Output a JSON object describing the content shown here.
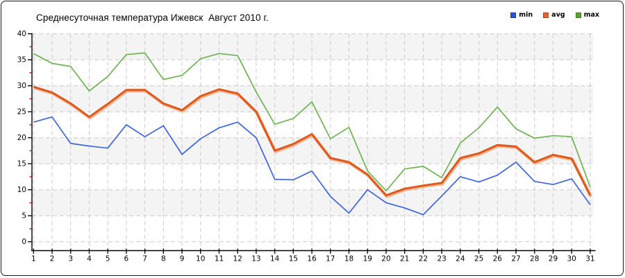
{
  "window": {
    "background": "#ffffff",
    "border_color": "#1a1a1a"
  },
  "title": "Среднесуточная температура Ижевск  Август 2010 г.",
  "legend": {
    "position": "top-right",
    "items": [
      {
        "label": "min",
        "color": "#2c50d6"
      },
      {
        "label": "avg",
        "color": "#e8612c"
      },
      {
        "label": "max",
        "color": "#55a52f"
      }
    ]
  },
  "chart_data": {
    "type": "line",
    "title": "Среднесуточная температура Ижевск  Август 2010 г.",
    "xlabel": "",
    "ylabel": "",
    "x": [
      1,
      2,
      3,
      4,
      5,
      6,
      7,
      8,
      9,
      10,
      11,
      12,
      13,
      14,
      15,
      16,
      17,
      18,
      19,
      20,
      21,
      22,
      23,
      24,
      25,
      26,
      27,
      28,
      29,
      30,
      31
    ],
    "ylim": [
      0,
      40
    ],
    "ytick_step": 5,
    "yticks": [
      0,
      5,
      10,
      15,
      20,
      25,
      30,
      35,
      40
    ],
    "grid": true,
    "grid_style": "dashed",
    "grid_color": "#cccccc",
    "band_color": "#f4f4f4",
    "axis_color": "#000000",
    "minor_tick_color": "#dd0000",
    "tick_label_color": "#000000",
    "legend_position": "top-right",
    "series": [
      {
        "name": "min",
        "color": "#3d64db",
        "width": 1.7,
        "values": [
          23.0,
          24.0,
          18.9,
          18.4,
          18.0,
          22.5,
          20.2,
          22.3,
          16.8,
          19.8,
          21.9,
          23.0,
          20.0,
          12.0,
          11.9,
          13.6,
          8.7,
          5.5,
          10.0,
          7.5,
          6.5,
          5.2,
          8.8,
          12.5,
          11.5,
          12.8,
          15.3,
          11.6,
          11.0,
          12.1,
          7.1
        ]
      },
      {
        "name": "avg",
        "color": "#dc5a1d",
        "halo_color": "#f2a87e",
        "width": 3,
        "values": [
          29.8,
          28.7,
          26.6,
          24.0,
          26.5,
          29.2,
          29.2,
          26.6,
          25.3,
          28.0,
          29.3,
          28.5,
          25.0,
          17.5,
          18.8,
          20.7,
          16.1,
          15.3,
          12.9,
          8.9,
          10.2,
          10.8,
          11.3,
          16.1,
          17.0,
          18.6,
          18.3,
          15.3,
          16.7,
          16.0,
          8.9
        ]
      },
      {
        "name": "max",
        "color": "#6db352",
        "width": 1.7,
        "values": [
          36.2,
          34.3,
          33.7,
          29.0,
          31.8,
          36.0,
          36.3,
          31.2,
          32.0,
          35.2,
          36.2,
          35.8,
          28.8,
          22.6,
          23.7,
          26.9,
          19.8,
          22.0,
          13.6,
          9.8,
          14.0,
          14.5,
          12.3,
          19.0,
          21.9,
          25.9,
          21.7,
          19.9,
          20.4,
          20.2,
          10.5
        ]
      }
    ]
  }
}
